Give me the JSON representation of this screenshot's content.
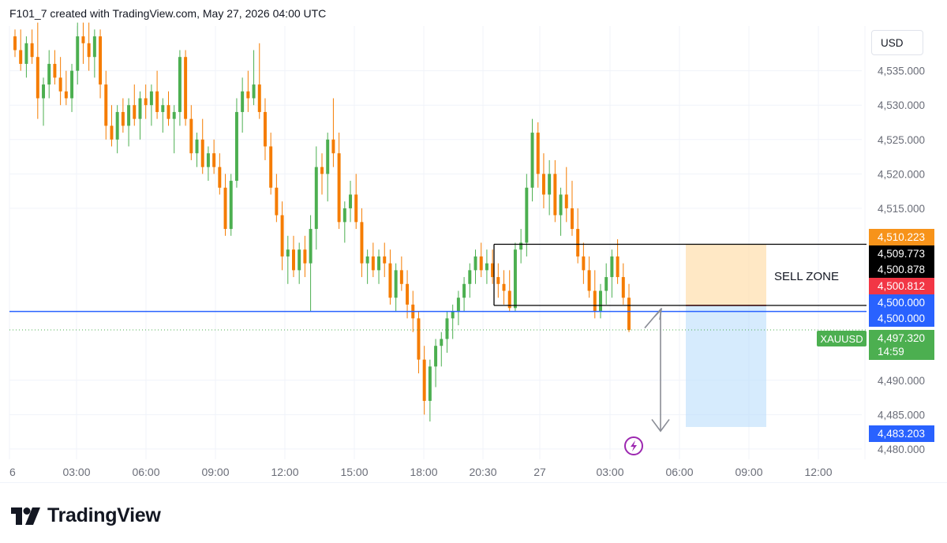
{
  "header": {
    "title": "F101_7 created with TradingView.com, May 27, 2026 04:00 UTC"
  },
  "currency": "USD",
  "symbol": "XAUUSD",
  "sell_zone_label": "SELL ZONE",
  "logo_text": "TradingView",
  "colors": {
    "up": "#4caf50",
    "down": "#f57c00",
    "blue_line": "#2962ff",
    "orange_tag": "#f7931a",
    "black_tag": "#000000",
    "red_tag": "#f23645",
    "blue_tag": "#2962ff",
    "green_tag": "#4caf50",
    "sell_zone_fill": "#ffe0b2",
    "target_fill": "#bbdefb"
  },
  "price_tags": {
    "orange": "4,510.223",
    "black_top": "4,509.773",
    "black_mid": "4,500.878",
    "red": "4,500.812",
    "blue_a": "4,500.000",
    "blue_b": "4,500.000",
    "live_price": "4,497.320",
    "countdown": "14:59",
    "target": "4,483.203"
  },
  "chart_data": {
    "type": "candlestick",
    "symbol": "XAUUSD",
    "y_axis_ticks": [
      "4,535.000",
      "4,530.000",
      "4,525.000",
      "4,520.000",
      "4,515.000",
      "4,490.000",
      "4,485.000",
      "4,480.000"
    ],
    "y_axis_values": [
      4535,
      4530,
      4525,
      4520,
      4515,
      4490,
      4485,
      4480
    ],
    "ylim": [
      4478.5,
      4541.5
    ],
    "x_axis_ticks": [
      "6",
      "03:00",
      "06:00",
      "09:00",
      "12:00",
      "15:00",
      "18:00",
      "20:30",
      "27",
      "03:00",
      "06:00",
      "09:00",
      "12:00"
    ],
    "levels": {
      "blue_horizontal": 4500.0,
      "current_price": 4497.32,
      "sell_zone_top": 4509.773,
      "sell_zone_bottom": 4500.878,
      "target": 4483.203,
      "stop": 4510.223
    },
    "candles": [
      [
        4540.0,
        4541.0,
        4537.0,
        4538.0
      ],
      [
        4538.0,
        4541.0,
        4535.0,
        4536.0
      ],
      [
        4536.0,
        4540.0,
        4534.0,
        4539.0
      ],
      [
        4539.0,
        4541.0,
        4536.0,
        4537.0
      ],
      [
        4537.0,
        4542.0,
        4528.0,
        4531.0
      ],
      [
        4531.0,
        4534.0,
        4527.0,
        4533.0
      ],
      [
        4533.0,
        4538.0,
        4531.0,
        4536.0
      ],
      [
        4536.0,
        4538.0,
        4533.0,
        4534.0
      ],
      [
        4534.0,
        4537.0,
        4530.0,
        4532.0
      ],
      [
        4532.0,
        4535.0,
        4530.0,
        4531.0
      ],
      [
        4531.0,
        4536.0,
        4529.0,
        4535.0
      ],
      [
        4535.0,
        4542.0,
        4533.0,
        4540.0
      ],
      [
        4540.0,
        4542.0,
        4536.0,
        4539.0
      ],
      [
        4539.0,
        4542.0,
        4535.0,
        4537.0
      ],
      [
        4537.0,
        4541.0,
        4534.0,
        4540.0
      ],
      [
        4540.0,
        4541.0,
        4531.0,
        4533.0
      ],
      [
        4533.0,
        4535.0,
        4525.0,
        4527.0
      ],
      [
        4527.0,
        4530.0,
        4524.0,
        4525.0
      ],
      [
        4525.0,
        4530.0,
        4523.0,
        4529.0
      ],
      [
        4529.0,
        4531.0,
        4526.0,
        4527.0
      ],
      [
        4527.0,
        4531.0,
        4524.0,
        4530.0
      ],
      [
        4530.0,
        4533.0,
        4527.0,
        4528.0
      ],
      [
        4528.0,
        4532.0,
        4525.0,
        4531.0
      ],
      [
        4531.0,
        4533.0,
        4528.0,
        4530.0
      ],
      [
        4530.0,
        4533.0,
        4527.0,
        4532.0
      ],
      [
        4532.0,
        4535.0,
        4528.0,
        4529.0
      ],
      [
        4529.0,
        4531.0,
        4526.0,
        4530.0
      ],
      [
        4530.0,
        4532.0,
        4527.0,
        4528.0
      ],
      [
        4528.0,
        4530.0,
        4523.0,
        4529.0
      ],
      [
        4529.0,
        4538.0,
        4527.0,
        4537.0
      ],
      [
        4537.0,
        4538.0,
        4527.0,
        4528.0
      ],
      [
        4528.0,
        4530.0,
        4522.0,
        4523.0
      ],
      [
        4523.0,
        4526.0,
        4521.0,
        4525.0
      ],
      [
        4525.0,
        4528.0,
        4520.0,
        4521.0
      ],
      [
        4521.0,
        4524.0,
        4519.0,
        4523.0
      ],
      [
        4523.0,
        4525.0,
        4520.0,
        4521.0
      ],
      [
        4521.0,
        4523.0,
        4517.0,
        4518.0
      ],
      [
        4518.0,
        4520.0,
        4511.0,
        4512.0
      ],
      [
        4512.0,
        4520.0,
        4511.0,
        4519.0
      ],
      [
        4519.0,
        4531.0,
        4518.0,
        4529.0
      ],
      [
        4529.0,
        4534.0,
        4526.0,
        4532.0
      ],
      [
        4532.0,
        4535.0,
        4529.0,
        4531.0
      ],
      [
        4531.0,
        4538.0,
        4530.0,
        4533.0
      ],
      [
        4533.0,
        4539.0,
        4528.0,
        4529.0
      ],
      [
        4529.0,
        4531.0,
        4522.0,
        4524.0
      ],
      [
        4524.0,
        4526.0,
        4517.0,
        4518.0
      ],
      [
        4518.0,
        4520.0,
        4513.0,
        4514.0
      ],
      [
        4514.0,
        4516.0,
        4506.0,
        4508.0
      ],
      [
        4508.0,
        4511.0,
        4504.0,
        4509.0
      ],
      [
        4509.0,
        4511.0,
        4505.0,
        4506.0
      ],
      [
        4506.0,
        4510.0,
        4504.0,
        4509.0
      ],
      [
        4509.0,
        4511.0,
        4505.0,
        4507.0
      ],
      [
        4507.0,
        4514.0,
        4500.0,
        4512.0
      ],
      [
        4512.0,
        4524.0,
        4509.0,
        4521.0
      ],
      [
        4521.0,
        4523.0,
        4517.0,
        4520.0
      ],
      [
        4520.0,
        4526.0,
        4516.0,
        4525.0
      ],
      [
        4525.0,
        4531.0,
        4521.0,
        4523.0
      ],
      [
        4523.0,
        4526.0,
        4512.0,
        4513.0
      ],
      [
        4513.0,
        4516.0,
        4510.0,
        4515.0
      ],
      [
        4515.0,
        4519.0,
        4513.0,
        4517.0
      ],
      [
        4517.0,
        4520.0,
        4512.0,
        4513.0
      ],
      [
        4513.0,
        4515.0,
        4505.0,
        4507.0
      ],
      [
        4507.0,
        4509.0,
        4504.0,
        4508.0
      ],
      [
        4508.0,
        4510.0,
        4505.0,
        4506.0
      ],
      [
        4506.0,
        4509.0,
        4504.0,
        4508.0
      ],
      [
        4508.0,
        4510.0,
        4505.0,
        4507.0
      ],
      [
        4507.0,
        4509.0,
        4501.0,
        4502.0
      ],
      [
        4502.0,
        4507.0,
        4500.0,
        4506.0
      ],
      [
        4506.0,
        4508.0,
        4503.0,
        4504.0
      ],
      [
        4504.0,
        4506.0,
        4499.0,
        4501.0
      ],
      [
        4501.0,
        4503.0,
        4497.0,
        4499.0
      ],
      [
        4499.0,
        4500.0,
        4491.0,
        4493.0
      ],
      [
        4493.0,
        4495.0,
        4485.0,
        4487.0
      ],
      [
        4487.0,
        4493.0,
        4484.0,
        4492.0
      ],
      [
        4492.0,
        4496.0,
        4489.0,
        4495.0
      ],
      [
        4495.0,
        4497.0,
        4492.0,
        4496.0
      ],
      [
        4496.0,
        4500.0,
        4494.0,
        4499.0
      ],
      [
        4499.0,
        4501.0,
        4496.0,
        4500.0
      ],
      [
        4500.0,
        4503.0,
        4498.0,
        4502.0
      ],
      [
        4502.0,
        4505.0,
        4500.0,
        4504.0
      ],
      [
        4504.0,
        4507.0,
        4502.0,
        4506.0
      ],
      [
        4506.0,
        4509.0,
        4504.0,
        4508.0
      ],
      [
        4508.0,
        4510.0,
        4505.0,
        4506.0
      ],
      [
        4506.0,
        4509.0,
        4504.0,
        4507.0
      ],
      [
        4507.0,
        4509.0,
        4504.0,
        4505.0
      ],
      [
        4505.0,
        4507.0,
        4502.0,
        4504.0
      ],
      [
        4504.0,
        4506.0,
        4501.0,
        4503.0
      ],
      [
        4503.0,
        4506.0,
        4500.0,
        4500.5
      ],
      [
        4500.5,
        4510.0,
        4500.0,
        4509.0
      ],
      [
        4509.0,
        4512.0,
        4507.0,
        4510.0
      ],
      [
        4510.0,
        4520.0,
        4508.0,
        4518.0
      ],
      [
        4518.0,
        4528.0,
        4516.0,
        4526.0
      ],
      [
        4526.0,
        4527.5,
        4518.0,
        4520.0
      ],
      [
        4520.0,
        4523.0,
        4515.0,
        4517.0
      ],
      [
        4517.0,
        4522.0,
        4514.0,
        4520.0
      ],
      [
        4520.0,
        4522.0,
        4513.0,
        4514.0
      ],
      [
        4514.0,
        4518.0,
        4511.0,
        4517.0
      ],
      [
        4517.0,
        4521.0,
        4513.0,
        4515.0
      ],
      [
        4515.0,
        4519.0,
        4511.0,
        4512.0
      ],
      [
        4512.0,
        4515.0,
        4507.0,
        4508.0
      ],
      [
        4508.0,
        4510.0,
        4504.0,
        4506.0
      ],
      [
        4506.0,
        4508.0,
        4502.0,
        4503.0
      ],
      [
        4503.0,
        4506.0,
        4499.0,
        4500.0
      ],
      [
        4500.0,
        4504.0,
        4499.0,
        4503.0
      ],
      [
        4503.0,
        4507.0,
        4501.0,
        4505.0
      ],
      [
        4505.0,
        4509.0,
        4502.0,
        4508.0
      ],
      [
        4508.0,
        4510.5,
        4504.0,
        4505.0
      ],
      [
        4505.0,
        4507.0,
        4501.0,
        4502.0
      ],
      [
        4502.0,
        4504.0,
        4497.0,
        4497.3
      ]
    ]
  }
}
